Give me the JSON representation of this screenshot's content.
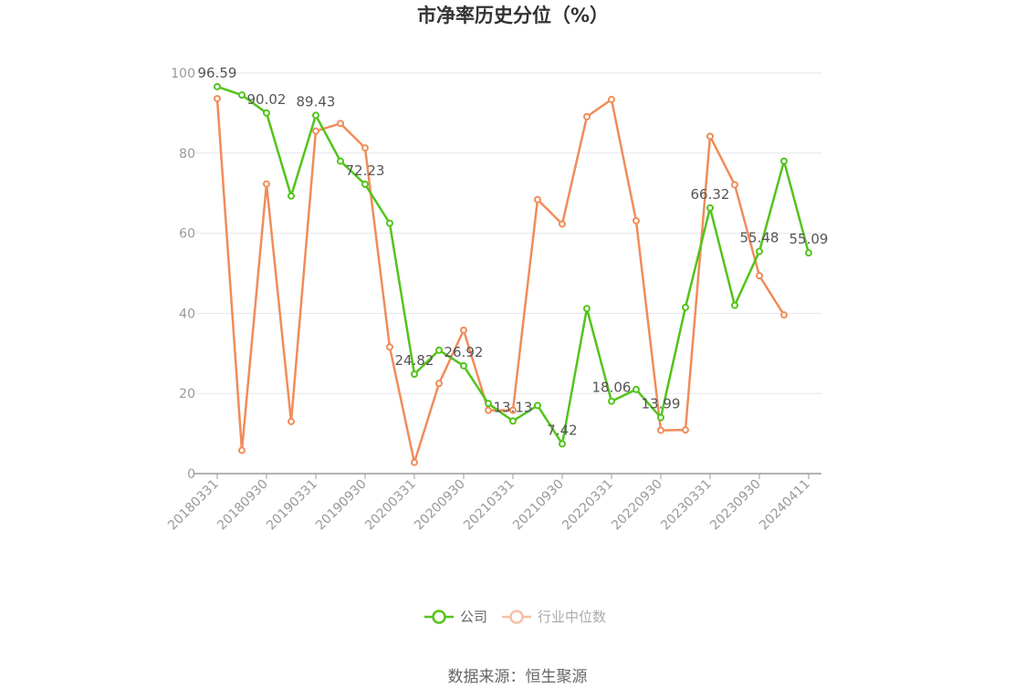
{
  "chart_data": {
    "type": "line",
    "title": "市净率历史分位（%）",
    "xlabel": "",
    "ylabel": "",
    "ylim": [
      0,
      100
    ],
    "yticks": [
      0,
      20,
      40,
      60,
      80,
      100
    ],
    "grid": true,
    "legend_position": "bottom",
    "x": [
      "20180331",
      "20180630",
      "20180930",
      "20181231",
      "20190331",
      "20190630",
      "20190930",
      "20191231",
      "20200331",
      "20200630",
      "20200930",
      "20201231",
      "20210331",
      "20210630",
      "20210930",
      "20211231",
      "20220331",
      "20220630",
      "20220930",
      "20221231",
      "20230331",
      "20230630",
      "20230930",
      "20231231",
      "20240411"
    ],
    "x_tick_labels": [
      "20180331",
      "20180930",
      "20190331",
      "20190930",
      "20200331",
      "20200930",
      "20210331",
      "20210930",
      "20220331",
      "20220930",
      "20230331",
      "20230930",
      "20240411"
    ],
    "series": [
      {
        "name": "公司",
        "color": "#52c41a",
        "values": [
          96.59,
          94.5,
          90.02,
          69.3,
          89.43,
          78.0,
          72.23,
          62.5,
          24.82,
          30.8,
          26.92,
          17.5,
          13.13,
          17.0,
          7.42,
          41.2,
          18.06,
          21.0,
          13.99,
          41.5,
          66.32,
          42.0,
          55.48,
          78.0,
          55.09
        ],
        "labels": {
          "0": "96.59",
          "2": "90.02",
          "4": "89.43",
          "6": "72.23",
          "8": "24.82",
          "10": "26.92",
          "12": "13.13",
          "14": "7.42",
          "16": "18.06",
          "18": "13.99",
          "20": "66.32",
          "22": "55.48",
          "24": "55.09"
        }
      },
      {
        "name": "行业中位数",
        "color": "#f08c5a",
        "values": [
          93.6,
          5.8,
          72.3,
          13.0,
          85.5,
          87.4,
          81.3,
          31.6,
          2.8,
          22.5,
          35.8,
          15.8,
          15.8,
          68.4,
          62.3,
          89.1,
          93.4,
          63.1,
          10.8,
          10.9,
          84.2,
          72.1,
          49.4,
          39.6,
          null
        ]
      }
    ],
    "source": "数据来源：恒生聚源"
  }
}
